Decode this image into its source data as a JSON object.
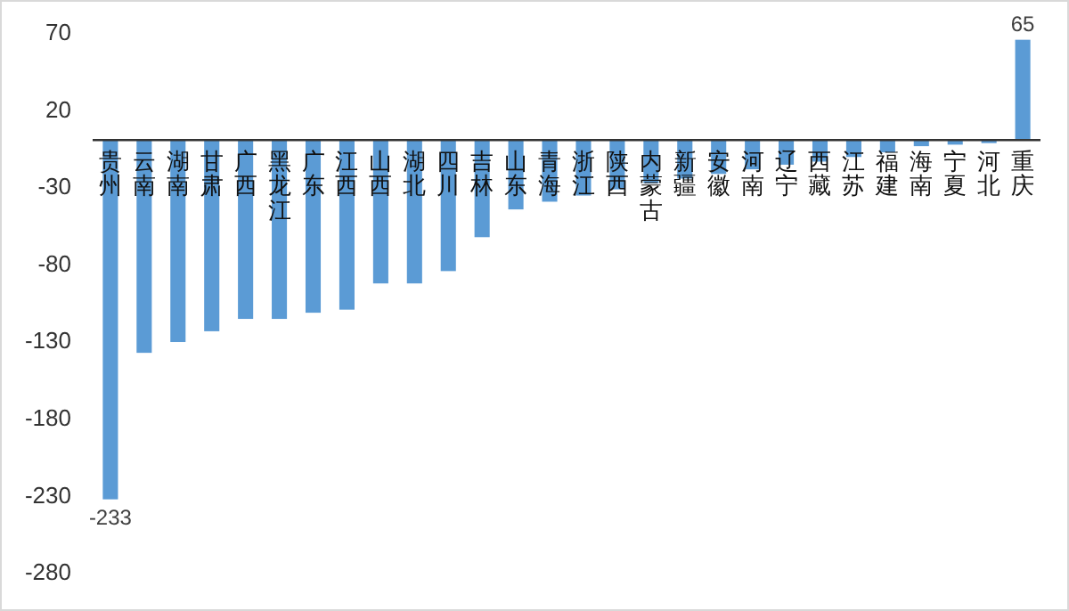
{
  "chart_data": {
    "type": "bar",
    "categories": [
      "贵州",
      "云南",
      "湖南",
      "甘肃",
      "广西",
      "黑龙江",
      "广东",
      "江西",
      "山西",
      "湖北",
      "四川",
      "吉林",
      "山东",
      "青海",
      "浙江",
      "陕西",
      "内蒙古",
      "新疆",
      "安徽",
      "河南",
      "辽宁",
      "西藏",
      "江苏",
      "福建",
      "海南",
      "宁夏",
      "河北",
      "重庆"
    ],
    "values": [
      -233,
      -138,
      -131,
      -124,
      -116,
      -116,
      -112,
      -110,
      -93,
      -93,
      -85,
      -63,
      -45,
      -40,
      -36,
      -32,
      -28,
      -25,
      -22,
      -19,
      -16,
      -14,
      -11,
      -8,
      -4,
      -3,
      -2,
      65
    ],
    "value_labels": [
      "-233",
      null,
      null,
      null,
      null,
      null,
      null,
      null,
      null,
      null,
      null,
      null,
      null,
      null,
      null,
      null,
      null,
      null,
      null,
      null,
      null,
      null,
      null,
      null,
      null,
      null,
      null,
      "65"
    ],
    "color": "#5b9bd5",
    "ylim": [
      -280,
      70
    ],
    "yticks": [
      -280,
      -230,
      -180,
      -130,
      -80,
      -30,
      20,
      70
    ],
    "grid": false
  }
}
